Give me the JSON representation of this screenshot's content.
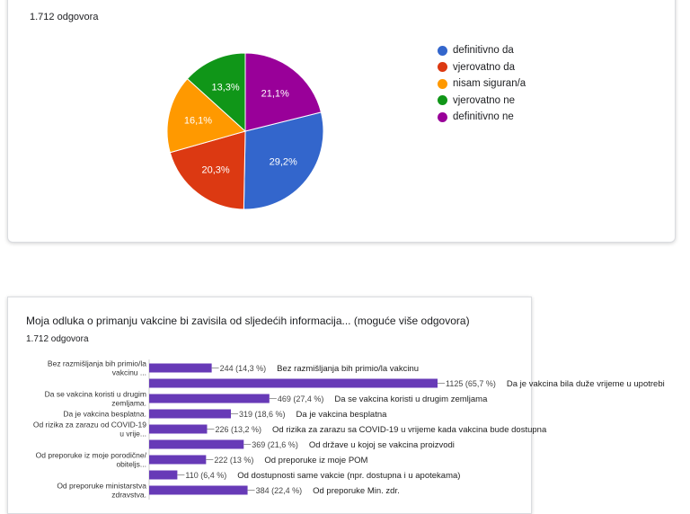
{
  "chart_data": [
    {
      "type": "pie",
      "response_count": "1.712 odgovora",
      "labels": [
        "definitivno da",
        "vjerovatno da",
        "nisam siguran/a",
        "vjerovatno ne",
        "definitivno ne"
      ],
      "values": [
        29.2,
        20.3,
        16.1,
        13.3,
        21.1
      ],
      "value_labels": [
        "29,2%",
        "20,3%",
        "16,1%",
        "13,3%",
        "21,1%"
      ],
      "colors": [
        "#3366cc",
        "#dc3912",
        "#ff9900",
        "#109618",
        "#990099"
      ],
      "legend_position": "right"
    },
    {
      "type": "bar",
      "orientation": "horizontal",
      "title": "Moja odluka o primanju vakcine bi zavisila od sljedećih informacija... (moguće više odgovora)",
      "response_count": "1.712 odgovora",
      "categories": [
        [
          "Bez razmišljanja bih primio/la",
          "vakcinu ..."
        ],
        [
          ""
        ],
        [
          "Da se vakcina koristi u drugim",
          "zemljama."
        ],
        [
          "Da je vakcina besplatna."
        ],
        [
          "Od rizika za zarazu od COVID-19",
          "u vrije..."
        ],
        [
          ""
        ],
        [
          "Od preporuke iz moje porodične/",
          "obitelјs..."
        ],
        [
          ""
        ],
        [
          "Od preporuke ministarstva",
          "zdravstva."
        ]
      ],
      "values": [
        244,
        1125,
        469,
        319,
        226,
        369,
        222,
        110,
        384
      ],
      "value_labels": [
        "244 (14,3 %)",
        "1125 (65,7 %)",
        "469 (27,4 %)",
        "319 (18,6 %)",
        "226 (13,2 %)",
        "369 (21,6 %)",
        "222 (13 %)",
        "110 (6,4 %)",
        "384 (22,4 %)"
      ],
      "annotations": [
        "Bez razmišljanja bih primio/la vakcinu",
        "Da je vakcina bila duže vrijeme u upotrebi",
        "Da se vakcina koristi u drugim zemljama",
        "Da je vakcina besplatna",
        "Od rizika za zarazu sa COVID-19 u vrijeme kada vakcina bude dostupna",
        "Od države u kojoj se vakcina proizvodi",
        "Od preporuke iz moje POM",
        "Od dostupnosti same vakcie (npr. dostupna i u apotekama)",
        "Od preporuke Min. zdr."
      ],
      "color": "#673ab7",
      "xlim": [
        0,
        1125
      ]
    }
  ]
}
